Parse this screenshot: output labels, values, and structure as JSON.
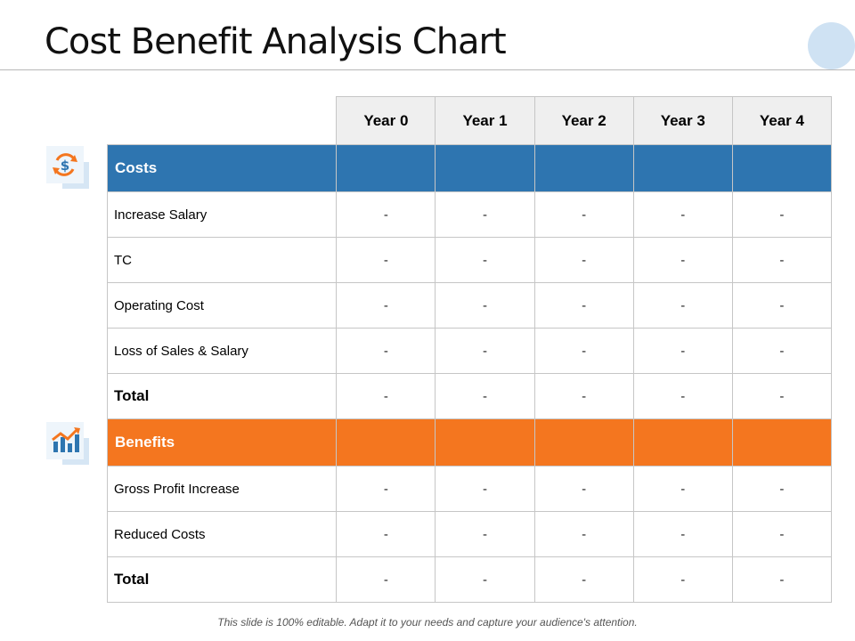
{
  "title": "Cost Benefit Analysis Chart",
  "years": [
    "Year 0",
    "Year 1",
    "Year 2",
    "Year 3",
    "Year 4"
  ],
  "sections": {
    "costs": {
      "label": "Costs",
      "color": "#2e75b0",
      "icon": "dollar-cycle-icon",
      "rows": [
        {
          "label": "Increase Salary",
          "values": [
            "-",
            "-",
            "-",
            "-",
            "-"
          ]
        },
        {
          "label": "TC",
          "values": [
            "-",
            "-",
            "-",
            "-",
            "-"
          ]
        },
        {
          "label": "Operating Cost",
          "values": [
            "-",
            "-",
            "-",
            "-",
            "-"
          ]
        },
        {
          "label": "Loss of Sales & Salary",
          "values": [
            "-",
            "-",
            "-",
            "-",
            "-"
          ]
        },
        {
          "label": "Total",
          "values": [
            "-",
            "-",
            "-",
            "-",
            "-"
          ]
        }
      ]
    },
    "benefits": {
      "label": "Benefits",
      "color": "#f4761f",
      "icon": "growth-chart-icon",
      "rows": [
        {
          "label": "Gross Profit Increase",
          "values": [
            "-",
            "-",
            "-",
            "-",
            "-"
          ]
        },
        {
          "label": "Reduced Costs",
          "values": [
            "-",
            "-",
            "-",
            "-",
            "-"
          ]
        },
        {
          "label": "Total",
          "values": [
            "-",
            "-",
            "-",
            "-",
            "-"
          ]
        }
      ]
    }
  },
  "footer": "This slide is 100% editable. Adapt it to your needs and capture your audience's attention.",
  "colors": {
    "accent_blue": "#2e75b0",
    "accent_orange": "#f4761f",
    "decor_circle": "#cfe2f3"
  }
}
